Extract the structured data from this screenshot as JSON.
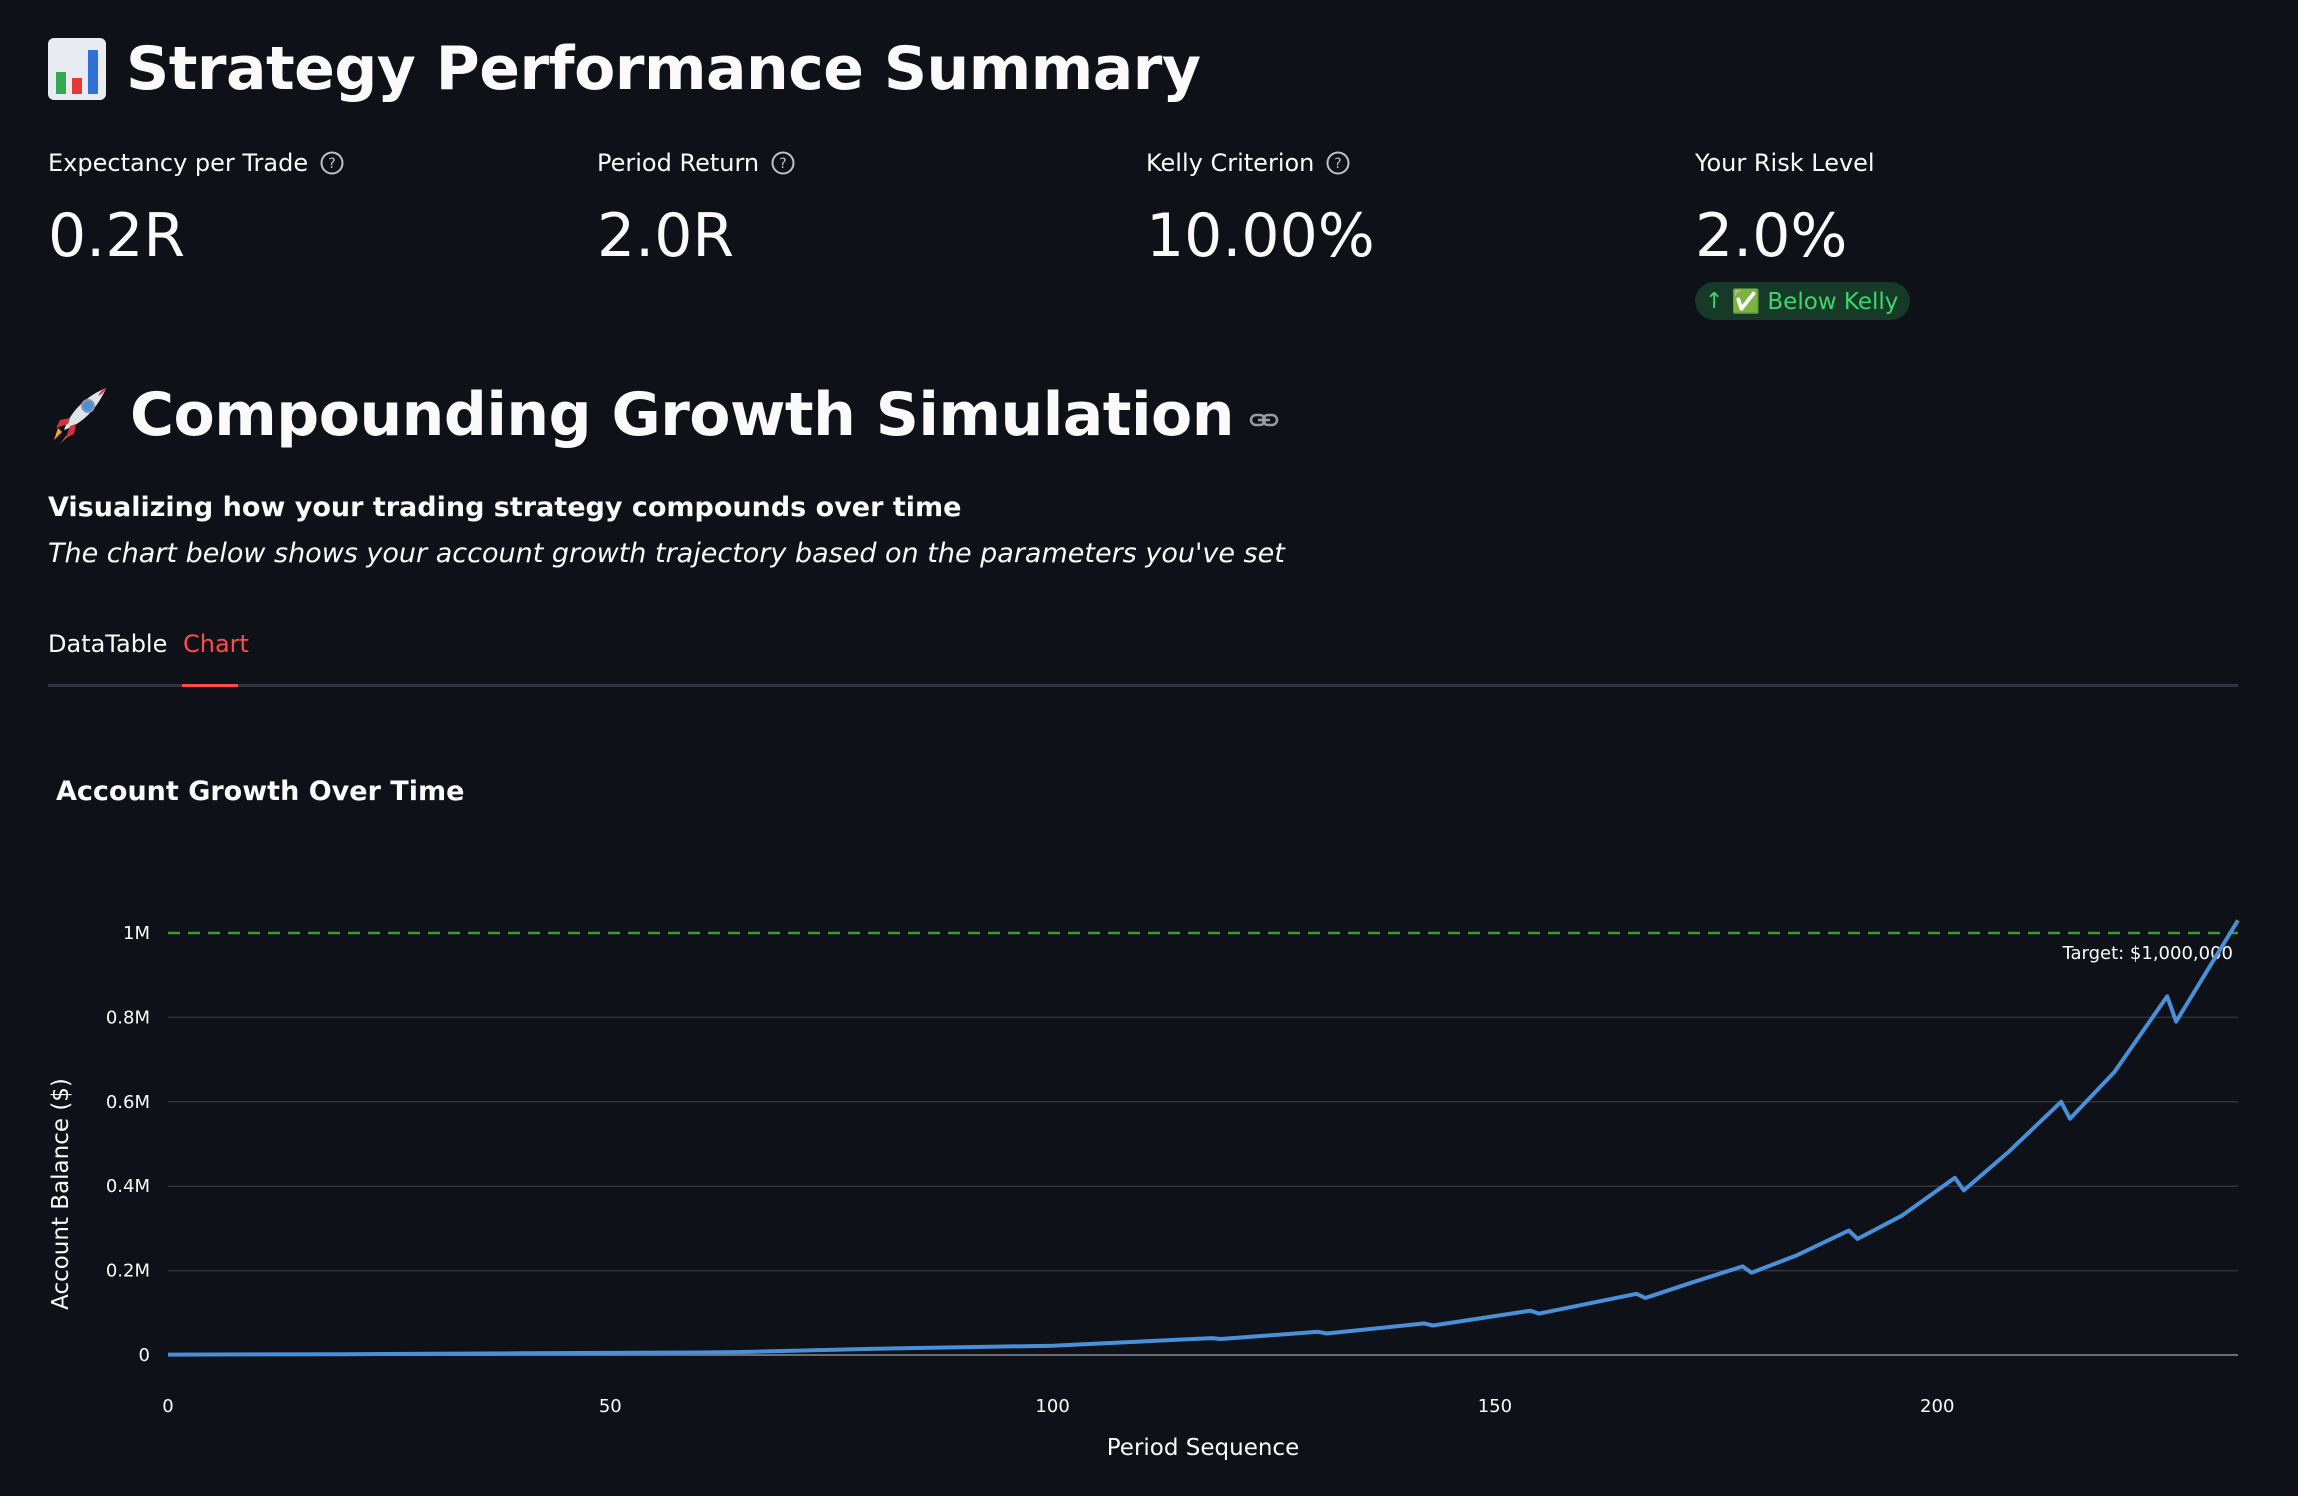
{
  "summary": {
    "title": "Strategy Performance Summary",
    "metrics": [
      {
        "label": "Expectancy per Trade",
        "value": "0.2R",
        "has_help": true
      },
      {
        "label": "Period Return",
        "value": "2.0R",
        "has_help": true
      },
      {
        "label": "Kelly Criterion",
        "value": "10.00%",
        "has_help": true
      },
      {
        "label": "Your Risk Level",
        "value": "2.0%",
        "has_help": false,
        "delta": "✅ Below Kelly"
      }
    ]
  },
  "simulation": {
    "title": "Compounding Growth Simulation",
    "subtitle_bold": "Visualizing how your trading strategy compounds over time",
    "subtitle_italic": "The chart below shows your account growth trajectory based on the parameters you've set",
    "tabs": [
      {
        "label": "DataTable",
        "active": false
      },
      {
        "label": "Chart",
        "active": true
      }
    ]
  },
  "colors": {
    "background": "#0e1117",
    "line": "#4a90d9",
    "target": "#3d9a2f",
    "active_tab": "#ff4b4b",
    "delta_bg": "#173928",
    "delta_text": "#3dd56d"
  },
  "chart_data": {
    "type": "line",
    "title": "Account Growth Over Time",
    "xlabel": "Period Sequence",
    "ylabel": "Account Balance ($)",
    "xlim": [
      0,
      234
    ],
    "ylim": [
      0,
      1000000
    ],
    "x_ticks": [
      0,
      50,
      100,
      150,
      200
    ],
    "x_tick_labels": [
      "0",
      "50",
      "100",
      "150",
      "200"
    ],
    "y_ticks": [
      0,
      200000,
      400000,
      600000,
      800000,
      1000000
    ],
    "y_tick_labels": [
      "0",
      "0.2M",
      "0.4M",
      "0.6M",
      "0.8M",
      "1M"
    ],
    "grid": true,
    "series": [
      {
        "x": [
          0,
          20,
          40,
          60,
          65,
          80,
          100,
          118,
          119,
          130,
          131,
          142,
          143,
          154,
          155,
          166,
          167,
          172,
          178,
          179,
          184,
          190,
          191,
          196,
          202,
          203,
          208,
          214,
          215,
          220,
          226,
          227,
          234
        ],
        "y": [
          1000,
          2000,
          4000,
          6000,
          7000,
          15000,
          22000,
          40000,
          38000,
          55000,
          51000,
          75000,
          70000,
          105000,
          98000,
          145000,
          135000,
          170000,
          210000,
          195000,
          235000,
          295000,
          275000,
          330000,
          420000,
          390000,
          480000,
          600000,
          560000,
          670000,
          850000,
          790000,
          1030000
        ]
      }
    ],
    "reference_line": {
      "y": 1000000,
      "label": "Target: $1,000,000"
    }
  }
}
